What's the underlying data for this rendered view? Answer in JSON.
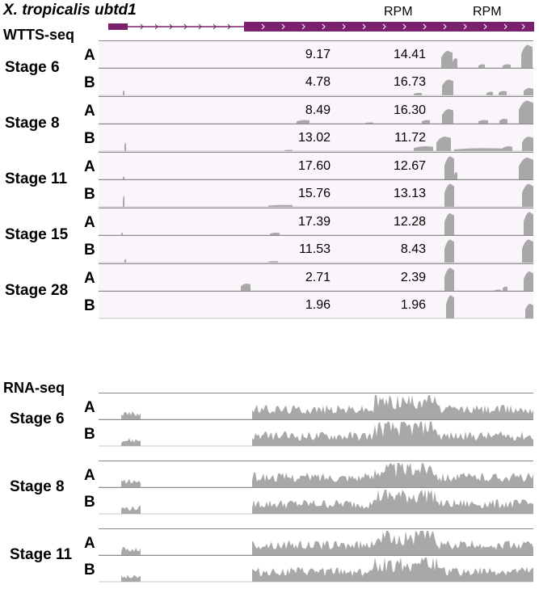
{
  "header": {
    "gene": "X. tropicalis ubtd1",
    "rpm_label_1": "RPM",
    "rpm_label_2": "RPM"
  },
  "sections": {
    "wtts": "WTTS-seq",
    "rna": "RNA-seq"
  },
  "colors": {
    "gene_model": "#7b1f6f",
    "signal": "#a8a8a8",
    "wtts_track_bg": "#faf5fa"
  },
  "wtts_groups": [
    {
      "stage": "Stage 6",
      "reps": [
        {
          "label": "A",
          "values": [
            "9.17",
            "14.41"
          ]
        },
        {
          "label": "B",
          "values": [
            "4.78",
            "16.73"
          ]
        }
      ]
    },
    {
      "stage": "Stage 8",
      "reps": [
        {
          "label": "A",
          "values": [
            "8.49",
            "16.30"
          ]
        },
        {
          "label": "B",
          "values": [
            "13.02",
            "11.72"
          ]
        }
      ]
    },
    {
      "stage": "Stage 11",
      "reps": [
        {
          "label": "A",
          "values": [
            "17.60",
            "12.67"
          ]
        },
        {
          "label": "B",
          "values": [
            "15.76",
            "13.13"
          ]
        }
      ]
    },
    {
      "stage": "Stage 15",
      "reps": [
        {
          "label": "A",
          "values": [
            "17.39",
            "12.28"
          ]
        },
        {
          "label": "B",
          "values": [
            "11.53",
            "8.43"
          ]
        }
      ]
    },
    {
      "stage": "Stage 28",
      "reps": [
        {
          "label": "A",
          "values": [
            "2.71",
            "2.39"
          ]
        },
        {
          "label": "B",
          "values": [
            "1.96",
            "1.96"
          ]
        }
      ]
    }
  ],
  "rna_groups": [
    {
      "stage": "Stage 6",
      "reps": [
        {
          "label": "A"
        },
        {
          "label": "B"
        }
      ]
    },
    {
      "stage": "Stage 8",
      "reps": [
        {
          "label": "A"
        },
        {
          "label": "B"
        }
      ]
    },
    {
      "stage": "Stage 11",
      "reps": [
        {
          "label": "A"
        },
        {
          "label": "B"
        }
      ]
    }
  ]
}
